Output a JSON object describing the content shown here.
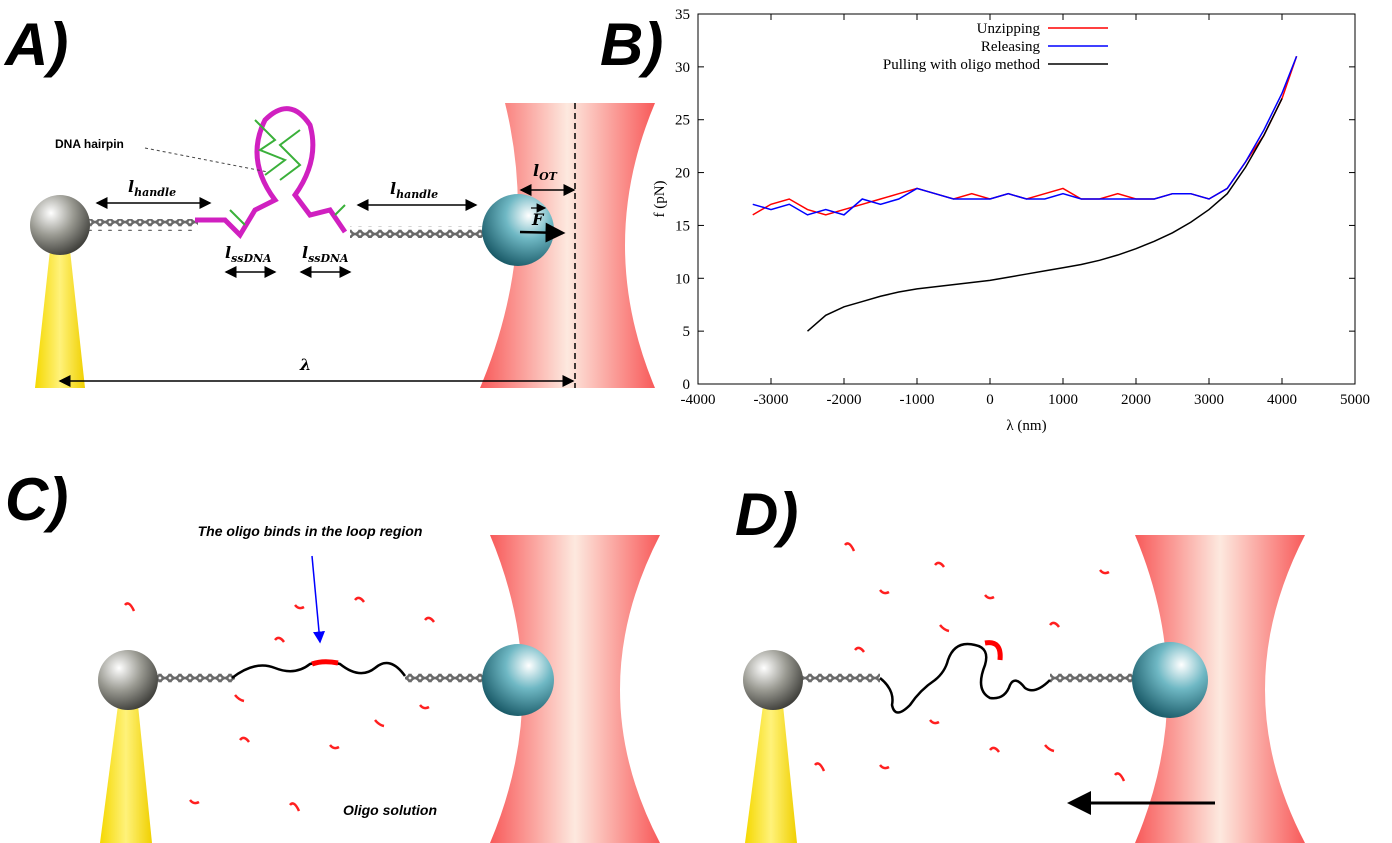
{
  "panel_labels": {
    "a": "A)",
    "b": "B)",
    "c": "C)",
    "d": "D)"
  },
  "panel_a": {
    "hairpin_label": "DNA hairpin",
    "l_handle": {
      "symbol": "l",
      "subscript": "handle"
    },
    "l_ssdna": {
      "symbol": "l",
      "subscript": "ssDNA"
    },
    "l_ot": {
      "symbol": "l",
      "subscript": "OT"
    },
    "force": "F",
    "lambda": "λ"
  },
  "panel_c": {
    "annotation": "The oligo binds in the loop region",
    "solution_label": "Oligo solution"
  },
  "chart_data": {
    "type": "line",
    "x_label": "λ (nm)",
    "y_label": "f (pN)",
    "xlim": [
      -4000,
      5000
    ],
    "xticks": [
      -4000,
      -3000,
      -2000,
      -1000,
      0,
      1000,
      2000,
      3000,
      4000,
      5000
    ],
    "ylim": [
      0,
      35
    ],
    "yticks": [
      0,
      5,
      10,
      15,
      20,
      25,
      30,
      35
    ],
    "grid": false,
    "legend": "upper right",
    "series": [
      {
        "name": "Unzipping",
        "color": "#ff0000",
        "x": [
          -3250,
          -3000,
          -2750,
          -2500,
          -2250,
          -2000,
          -1750,
          -1500,
          -1250,
          -1000,
          -750,
          -500,
          -250,
          0,
          250,
          500,
          750,
          1000,
          1250,
          1500,
          1750,
          2000,
          2250,
          2500,
          2750,
          3000,
          3250,
          3500,
          3750,
          4000,
          4200
        ],
        "values": [
          16,
          17,
          17.5,
          16.5,
          16,
          16.5,
          17,
          17.5,
          18,
          18.5,
          18,
          17.5,
          18,
          17.5,
          18,
          17.5,
          18,
          18.5,
          17.5,
          17.5,
          18,
          17.5,
          17.5,
          18,
          18,
          17.5,
          18.5,
          21,
          23.5,
          27,
          31
        ]
      },
      {
        "name": "Releasing",
        "color": "#0000ff",
        "x": [
          -3250,
          -3000,
          -2750,
          -2500,
          -2250,
          -2000,
          -1750,
          -1500,
          -1250,
          -1000,
          -750,
          -500,
          -250,
          0,
          250,
          500,
          750,
          1000,
          1250,
          1500,
          1750,
          2000,
          2250,
          2500,
          2750,
          3000,
          3250,
          3500,
          3750,
          4000,
          4200
        ],
        "values": [
          17,
          16.5,
          17,
          16,
          16.5,
          16,
          17.5,
          17,
          17.5,
          18.5,
          18,
          17.5,
          17.5,
          17.5,
          18,
          17.5,
          17.5,
          18,
          17.5,
          17.5,
          17.5,
          17.5,
          17.5,
          18,
          18,
          17.5,
          18.5,
          21,
          24,
          27.5,
          31
        ]
      },
      {
        "name": "Pulling with oligo method",
        "color": "#000000",
        "x": [
          -2500,
          -2250,
          -2000,
          -1750,
          -1500,
          -1250,
          -1000,
          -750,
          -500,
          -250,
          0,
          250,
          500,
          750,
          1000,
          1250,
          1500,
          1750,
          2000,
          2250,
          2500,
          2750,
          3000,
          3250,
          3500,
          3750,
          4000
        ],
        "values": [
          5,
          6.5,
          7.3,
          7.8,
          8.3,
          8.7,
          9,
          9.2,
          9.4,
          9.6,
          9.8,
          10.1,
          10.4,
          10.7,
          11,
          11.3,
          11.7,
          12.2,
          12.8,
          13.5,
          14.3,
          15.3,
          16.5,
          18,
          20.5,
          23.5,
          27
        ]
      }
    ]
  }
}
